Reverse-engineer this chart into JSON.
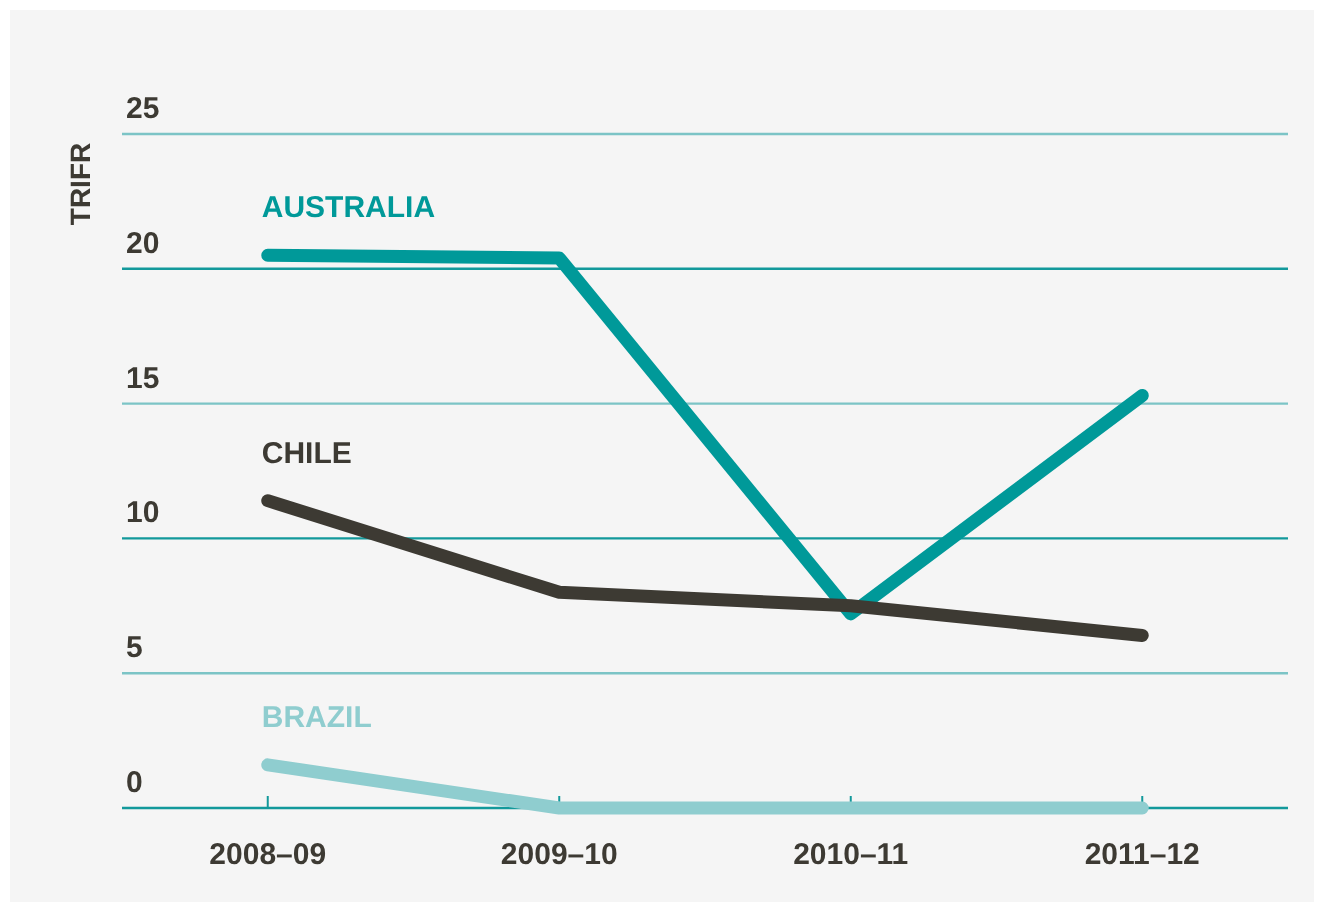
{
  "chart_data": {
    "type": "line",
    "ylabel": "TRIFR",
    "categories": [
      "2008–09",
      "2009–10",
      "2010–11",
      "2011–12"
    ],
    "series": [
      {
        "name": "AUSTRALIA",
        "color": "#009999",
        "values": [
          20.5,
          20.4,
          7.2,
          15.3
        ]
      },
      {
        "name": "CHILE",
        "color": "#3d3a33",
        "values": [
          11.4,
          8.0,
          7.5,
          6.4
        ]
      },
      {
        "name": "BRAZIL",
        "color": "#8fcdcf",
        "values": [
          1.6,
          0,
          0,
          0
        ]
      }
    ],
    "ylim": [
      0,
      25
    ],
    "yticks": [
      0,
      5,
      10,
      15,
      20,
      25
    ],
    "grid": "y",
    "legend": false,
    "marker": "none",
    "line_style": "solid"
  }
}
